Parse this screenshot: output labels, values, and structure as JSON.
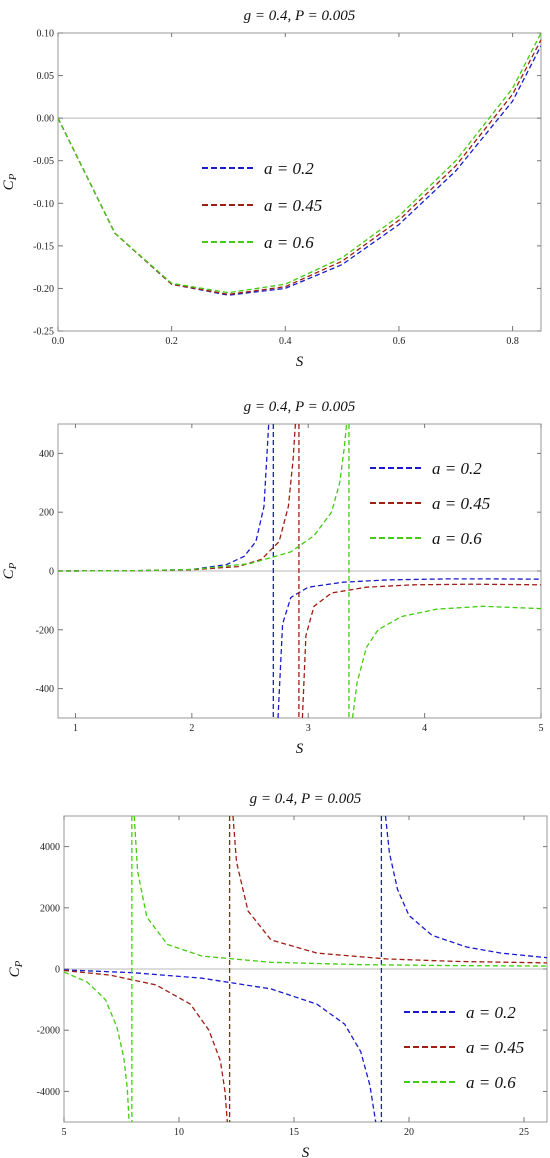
{
  "colors": {
    "a02": "#1a1acc",
    "a045": "#9e1f12",
    "a06": "#44cc11",
    "frame": "#9a9a9a",
    "zero": "#b8b8b8"
  },
  "chart_data": [
    {
      "type": "line",
      "title": "g = 0.4, P = 0.005",
      "xlabel": "S",
      "ylabel": "C_P",
      "xlim": [
        0,
        0.85
      ],
      "ylim": [
        -0.25,
        0.1
      ],
      "xticks": [
        "0.0",
        "0.2",
        "0.4",
        "0.6",
        "0.8"
      ],
      "xtick_values": [
        0,
        0.2,
        0.4,
        0.6,
        0.8
      ],
      "yticks": [
        "0.10",
        "0.05",
        "0.00",
        "-0.05",
        "-0.10",
        "-0.15",
        "-0.20",
        "-0.25"
      ],
      "ytick_values": [
        0.1,
        0.05,
        0,
        -0.05,
        -0.1,
        -0.15,
        -0.2,
        -0.25
      ],
      "legend_position": "center",
      "series": [
        {
          "name": "a = 0.2",
          "color": "#1a1acc",
          "x": [
            0,
            0.1,
            0.2,
            0.3,
            0.4,
            0.5,
            0.6,
            0.7,
            0.8,
            0.85
          ],
          "y": [
            0,
            -0.135,
            -0.195,
            -0.208,
            -0.2,
            -0.172,
            -0.125,
            -0.062,
            0.02,
            0.085
          ]
        },
        {
          "name": "a = 0.45",
          "color": "#9e1f12",
          "x": [
            0,
            0.1,
            0.2,
            0.3,
            0.4,
            0.5,
            0.6,
            0.7,
            0.8,
            0.85
          ],
          "y": [
            0,
            -0.135,
            -0.195,
            -0.207,
            -0.198,
            -0.168,
            -0.12,
            -0.056,
            0.028,
            0.092
          ]
        },
        {
          "name": "a = 0.6",
          "color": "#44cc11",
          "x": [
            0,
            0.1,
            0.2,
            0.3,
            0.4,
            0.5,
            0.6,
            0.7,
            0.8,
            0.85
          ],
          "y": [
            0,
            -0.135,
            -0.194,
            -0.205,
            -0.195,
            -0.164,
            -0.115,
            -0.05,
            0.035,
            0.1
          ]
        }
      ]
    },
    {
      "type": "line",
      "title": "g = 0.4, P = 0.005",
      "xlabel": "S",
      "ylabel": "C_P",
      "xlim": [
        0.85,
        5
      ],
      "ylim": [
        -500,
        500
      ],
      "xticks": [
        "1",
        "2",
        "3",
        "4",
        "5"
      ],
      "xtick_values": [
        1,
        2,
        3,
        4,
        5
      ],
      "yticks": [
        "400",
        "200",
        "0",
        "-200",
        "-400"
      ],
      "ytick_values": [
        400,
        200,
        0,
        -200,
        -400
      ],
      "legend_position": "top-right",
      "series": [
        {
          "name": "a = 0.2",
          "color": "#1a1acc",
          "divergence": 2.7,
          "left": {
            "x": [
              0.85,
              1.5,
              2.0,
              2.3,
              2.45,
              2.55,
              2.62,
              2.66
            ],
            "y": [
              0,
              1,
              5,
              22,
              50,
              100,
              220,
              500
            ]
          },
          "right": {
            "x": [
              2.74,
              2.78,
              2.85,
              3.0,
              3.3,
              3.7,
              4.2,
              4.6,
              5.0
            ],
            "y": [
              -500,
              -180,
              -90,
              -55,
              -38,
              -30,
              -27,
              -27,
              -28
            ]
          }
        },
        {
          "name": "a = 0.45",
          "color": "#9e1f12",
          "divergence": 2.92,
          "left": {
            "x": [
              0.85,
              1.5,
              2.0,
              2.4,
              2.6,
              2.75,
              2.83,
              2.87,
              2.89
            ],
            "y": [
              0,
              1,
              4,
              15,
              40,
              100,
              220,
              380,
              500
            ]
          },
          "right": {
            "x": [
              2.95,
              2.98,
              3.05,
              3.2,
              3.5,
              3.9,
              4.4,
              5.0
            ],
            "y": [
              -500,
              -220,
              -120,
              -75,
              -55,
              -47,
              -45,
              -47
            ]
          }
        },
        {
          "name": "a = 0.6",
          "color": "#44cc11",
          "divergence": 3.35,
          "left": {
            "x": [
              0.85,
              1.5,
              2.0,
              2.5,
              2.85,
              3.05,
              3.2,
              3.27,
              3.31,
              3.33
            ],
            "y": [
              0,
              1,
              5,
              25,
              65,
              120,
              200,
              300,
              420,
              500
            ]
          },
          "right": {
            "x": [
              3.38,
              3.42,
              3.5,
              3.6,
              3.8,
              4.1,
              4.5,
              5.0
            ],
            "y": [
              -500,
              -380,
              -260,
              -200,
              -155,
              -130,
              -120,
              -128
            ]
          }
        }
      ]
    },
    {
      "type": "line",
      "title": "g = 0.4, P = 0.005",
      "xlabel": "S",
      "ylabel": "C_P",
      "xlim": [
        5,
        26
      ],
      "ylim": [
        -5000,
        5000
      ],
      "xticks": [
        "5",
        "10",
        "15",
        "20",
        "25"
      ],
      "xtick_values": [
        5,
        10,
        15,
        20,
        25
      ],
      "yticks": [
        "4000",
        "2000",
        "0",
        "-2000",
        "-4000"
      ],
      "ytick_values": [
        4000,
        2000,
        0,
        -2000,
        -4000
      ],
      "legend_position": "bottom-right",
      "series": [
        {
          "name": "a = 0.2",
          "color": "#1a1acc",
          "divergence": 18.8,
          "left": {
            "x": [
              5,
              8,
              11,
              14,
              16,
              17.2,
              17.9,
              18.3,
              18.55
            ],
            "y": [
              -30,
              -120,
              -300,
              -650,
              -1150,
              -1800,
              -2700,
              -3800,
              -5000
            ]
          },
          "right": {
            "x": [
              18.98,
              19.15,
              19.5,
              20.0,
              21.0,
              22.5,
              24.0,
              26.0
            ],
            "y": [
              5000,
              3800,
              2600,
              1750,
              1100,
              720,
              520,
              370
            ]
          }
        },
        {
          "name": "a = 0.45",
          "color": "#9e1f12",
          "divergence": 12.2,
          "left": {
            "x": [
              5,
              7,
              9,
              10.5,
              11.3,
              11.8,
              12.0,
              12.1
            ],
            "y": [
              -50,
              -200,
              -520,
              -1150,
              -2000,
              -3000,
              -4000,
              -5000
            ]
          },
          "right": {
            "x": [
              12.35,
              12.5,
              13.0,
              14.0,
              16.0,
              19.0,
              22.0,
              26.0
            ],
            "y": [
              5000,
              3500,
              1900,
              950,
              520,
              330,
              250,
              200
            ]
          }
        },
        {
          "name": "a = 0.6",
          "color": "#44cc11",
          "divergence": 7.95,
          "left": {
            "x": [
              5,
              6.0,
              6.8,
              7.3,
              7.6,
              7.75,
              7.83
            ],
            "y": [
              -100,
              -420,
              -1000,
              -1900,
              -2900,
              -3900,
              -5000
            ]
          },
          "right": {
            "x": [
              8.05,
              8.2,
              8.6,
              9.5,
              11.0,
              14.0,
              18.0,
              22.0,
              26.0
            ],
            "y": [
              5000,
              3200,
              1700,
              800,
              420,
              220,
              140,
              110,
              95
            ]
          }
        }
      ]
    }
  ]
}
